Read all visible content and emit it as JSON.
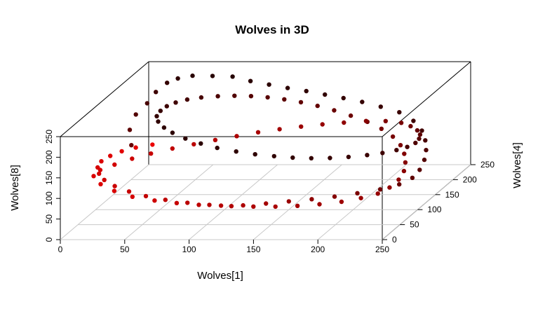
{
  "chart_data": {
    "type": "scatter",
    "title": "Wolves in 3D",
    "xlabel": "Wolves[1]",
    "ylabel": "Wolves[8]",
    "zlabel": "Wolves[4]",
    "xlim": [
      0,
      250
    ],
    "ylim": [
      0,
      250
    ],
    "zlim": [
      0,
      250
    ],
    "x_ticks": [
      "0",
      "50",
      "100",
      "150",
      "200",
      "250"
    ],
    "y_ticks": [
      "0",
      "50",
      "100",
      "150",
      "200",
      "250"
    ],
    "z_ticks": [
      "0",
      "50",
      "100",
      "150",
      "200",
      "250"
    ],
    "grid": true,
    "color_gradient": [
      "#ff0000",
      "#000000"
    ],
    "points": [
      [
        14,
        120,
        150
      ],
      [
        10,
        150,
        160
      ],
      [
        12,
        180,
        170
      ],
      [
        18,
        200,
        180
      ],
      [
        22,
        220,
        190
      ],
      [
        28,
        235,
        200
      ],
      [
        35,
        242,
        205
      ],
      [
        45,
        245,
        210
      ],
      [
        60,
        243,
        212
      ],
      [
        75,
        240,
        214
      ],
      [
        90,
        232,
        210
      ],
      [
        105,
        225,
        208
      ],
      [
        120,
        218,
        206
      ],
      [
        135,
        212,
        204
      ],
      [
        150,
        205,
        202
      ],
      [
        165,
        198,
        200
      ],
      [
        180,
        190,
        198
      ],
      [
        195,
        180,
        196
      ],
      [
        210,
        168,
        194
      ],
      [
        222,
        150,
        190
      ],
      [
        230,
        130,
        185
      ],
      [
        234,
        110,
        180
      ],
      [
        236,
        90,
        175
      ],
      [
        236,
        70,
        170
      ],
      [
        234,
        50,
        164
      ],
      [
        230,
        35,
        158
      ],
      [
        222,
        25,
        150
      ],
      [
        210,
        20,
        140
      ],
      [
        195,
        18,
        130
      ],
      [
        180,
        17,
        120
      ],
      [
        165,
        18,
        110
      ],
      [
        150,
        20,
        100
      ],
      [
        135,
        22,
        90
      ],
      [
        120,
        25,
        80
      ],
      [
        105,
        30,
        72
      ],
      [
        90,
        38,
        64
      ],
      [
        75,
        48,
        56
      ],
      [
        60,
        60,
        48
      ],
      [
        45,
        75,
        40
      ],
      [
        32,
        92,
        36
      ],
      [
        22,
        110,
        34
      ],
      [
        16,
        128,
        36
      ],
      [
        20,
        140,
        40
      ],
      [
        30,
        150,
        44
      ],
      [
        42,
        160,
        50
      ],
      [
        55,
        168,
        56
      ],
      [
        70,
        176,
        62
      ],
      [
        85,
        182,
        68
      ],
      [
        100,
        188,
        74
      ],
      [
        115,
        193,
        80
      ],
      [
        130,
        198,
        86
      ],
      [
        145,
        201,
        92
      ],
      [
        160,
        203,
        98
      ],
      [
        175,
        204,
        104
      ],
      [
        190,
        204,
        110
      ],
      [
        205,
        202,
        118
      ],
      [
        218,
        196,
        126
      ],
      [
        228,
        186,
        134
      ],
      [
        233,
        172,
        142
      ],
      [
        236,
        156,
        150
      ],
      [
        236,
        140,
        158
      ],
      [
        233,
        124,
        166
      ],
      [
        228,
        108,
        174
      ],
      [
        220,
        94,
        180
      ],
      [
        210,
        82,
        186
      ],
      [
        198,
        72,
        190
      ],
      [
        185,
        64,
        194
      ],
      [
        170,
        58,
        196
      ],
      [
        155,
        54,
        198
      ],
      [
        140,
        52,
        200
      ],
      [
        125,
        52,
        202
      ],
      [
        110,
        54,
        204
      ],
      [
        95,
        58,
        205
      ],
      [
        80,
        64,
        206
      ],
      [
        65,
        72,
        207
      ],
      [
        52,
        82,
        208
      ],
      [
        40,
        94,
        208
      ],
      [
        30,
        108,
        208
      ],
      [
        24,
        122,
        206
      ],
      [
        20,
        138,
        204
      ],
      [
        20,
        154,
        200
      ],
      [
        24,
        170,
        196
      ],
      [
        30,
        184,
        192
      ],
      [
        38,
        196,
        188
      ],
      [
        48,
        206,
        184
      ],
      [
        60,
        214,
        180
      ],
      [
        74,
        220,
        176
      ],
      [
        88,
        224,
        172
      ],
      [
        102,
        226,
        168
      ],
      [
        116,
        226,
        164
      ],
      [
        130,
        224,
        160
      ],
      [
        144,
        220,
        156
      ],
      [
        158,
        214,
        152
      ],
      [
        172,
        206,
        148
      ],
      [
        186,
        196,
        144
      ],
      [
        200,
        184,
        140
      ],
      [
        212,
        170,
        136
      ],
      [
        222,
        154,
        132
      ],
      [
        229,
        136,
        128
      ],
      [
        233,
        118,
        124
      ],
      [
        235,
        100,
        120
      ],
      [
        235,
        82,
        116
      ],
      [
        232,
        64,
        112
      ],
      [
        226,
        48,
        108
      ],
      [
        218,
        36,
        104
      ],
      [
        206,
        28,
        100
      ],
      [
        192,
        22,
        96
      ],
      [
        176,
        19,
        92
      ],
      [
        160,
        18,
        88
      ],
      [
        144,
        19,
        84
      ],
      [
        128,
        22,
        80
      ],
      [
        112,
        26,
        76
      ],
      [
        96,
        32,
        72
      ],
      [
        80,
        40,
        68
      ],
      [
        64,
        50,
        64
      ],
      [
        50,
        62,
        60
      ],
      [
        38,
        76,
        56
      ],
      [
        28,
        92,
        52
      ],
      [
        21,
        110,
        48
      ],
      [
        18,
        128,
        44
      ],
      [
        18,
        146,
        40
      ],
      [
        22,
        164,
        36
      ],
      [
        30,
        180,
        32
      ],
      [
        40,
        194,
        28
      ],
      [
        52,
        206,
        24
      ],
      [
        66,
        216,
        20
      ]
    ]
  }
}
